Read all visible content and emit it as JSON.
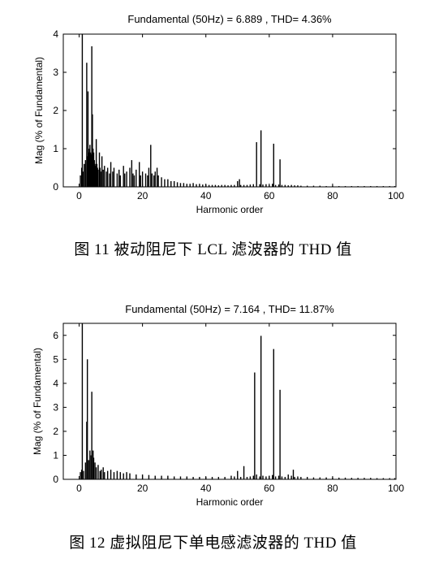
{
  "figures": [
    {
      "caption": "图 11  被动阻尼下 LCL 滤波器的 THD 值"
    },
    {
      "caption": "图 12  虚拟阻尼下单电感滤波器的 THD 值"
    }
  ],
  "chart_data": [
    {
      "type": "bar",
      "title": "Fundamental (50Hz) = 6.889 , THD= 4.36%",
      "xlabel": "Harmonic order",
      "ylabel": "Mag (% of Fundamental)",
      "xlim": [
        -5,
        100
      ],
      "ylim": [
        0,
        4
      ],
      "xticks": [
        0,
        20,
        40,
        60,
        80,
        100
      ],
      "yticks": [
        0,
        1,
        2,
        3,
        4
      ],
      "grid": false,
      "bar_color": "#000000",
      "series": [
        {
          "x": [
            0.4,
            0.8,
            1.0,
            1.2,
            1.6,
            2.0,
            2.4,
            2.6,
            2.8,
            3.0,
            3.2,
            3.4,
            3.6,
            3.8,
            4.0,
            4.2,
            4.4,
            4.6,
            4.8,
            5.0,
            5.2,
            5.4,
            5.6,
            5.8,
            6.0,
            6.4,
            6.6,
            7.0,
            7.2,
            7.6,
            8.0,
            8.6,
            9.0,
            9.6,
            10.0,
            10.6,
            11.0,
            12.0,
            12.6,
            13.0,
            14.0,
            14.4,
            15.0,
            16.0,
            16.6,
            17.0,
            17.4,
            18.0,
            19.0,
            19.4,
            20.0,
            21.0,
            21.6,
            22.0,
            22.6,
            23.0,
            23.6,
            24.0,
            24.6,
            25.0,
            26.0,
            27.0,
            28.0,
            29.0,
            30.0,
            31.0,
            32.0,
            33.0,
            34.0,
            35.0,
            36.0,
            37.0,
            38.0,
            39.0,
            40.0,
            41.0,
            42.0,
            43.0,
            44.0,
            45.0,
            46.0,
            47.0,
            48.0,
            49.0,
            50.0,
            50.6,
            51.0,
            52.0,
            53.0,
            54.0,
            55.0,
            56.0,
            57.0,
            57.4,
            58.0,
            59.0,
            60.0,
            61.0,
            61.4,
            62.0,
            63.0,
            63.4,
            64.0,
            65.0,
            66.0,
            67.0,
            68.0,
            69.0,
            70.0,
            72.0,
            74.0,
            76.0,
            78.0,
            80.0,
            82.0,
            84.0,
            86.0,
            88.0,
            90.0,
            92.0,
            94.0,
            96.0,
            98.0,
            99.6
          ],
          "y": [
            0.3,
            0.5,
            4.0,
            0.4,
            0.6,
            0.7,
            3.25,
            0.8,
            2.5,
            0.9,
            1.0,
            1.1,
            0.9,
            0.85,
            3.68,
            1.9,
            1.0,
            0.9,
            0.7,
            0.6,
            0.55,
            1.25,
            0.6,
            0.5,
            0.45,
            0.9,
            0.5,
            0.4,
            0.8,
            0.45,
            0.55,
            0.4,
            0.5,
            0.35,
            0.65,
            0.4,
            0.5,
            0.35,
            0.45,
            0.3,
            0.55,
            0.35,
            0.4,
            0.5,
            0.7,
            0.35,
            0.3,
            0.45,
            0.65,
            0.3,
            0.4,
            0.35,
            0.3,
            0.5,
            1.1,
            0.35,
            0.3,
            0.4,
            0.5,
            0.3,
            0.25,
            0.2,
            0.2,
            0.15,
            0.15,
            0.12,
            0.1,
            0.1,
            0.08,
            0.08,
            0.1,
            0.07,
            0.08,
            0.06,
            0.06,
            0.05,
            0.05,
            0.05,
            0.04,
            0.05,
            0.05,
            0.04,
            0.05,
            0.05,
            0.15,
            0.2,
            0.05,
            0.05,
            0.05,
            0.06,
            0.07,
            1.17,
            0.07,
            1.48,
            0.06,
            0.07,
            0.05,
            0.08,
            1.13,
            0.05,
            0.06,
            0.72,
            0.05,
            0.05,
            0.04,
            0.05,
            0.04,
            0.04,
            0.03,
            0.03,
            0.03,
            0.03,
            0.02,
            0.03,
            0.02,
            0.02,
            0.02,
            0.02,
            0.02,
            0.02,
            0.02,
            0.02,
            0.02,
            0.02
          ]
        }
      ]
    },
    {
      "type": "bar",
      "title": "Fundamental (50Hz) = 7.164 , THD= 11.87%",
      "xlabel": "Harmonic order",
      "ylabel": "Mag (% of Fundamental)",
      "xlim": [
        -5,
        100
      ],
      "ylim": [
        0,
        6.5
      ],
      "xticks": [
        0,
        20,
        40,
        60,
        80,
        100
      ],
      "yticks": [
        0,
        1,
        2,
        3,
        4,
        5,
        6
      ],
      "grid": false,
      "bar_color": "#000000",
      "series": [
        {
          "x": [
            0.4,
            0.8,
            1.0,
            1.4,
            2.0,
            2.4,
            2.6,
            3.0,
            3.4,
            3.8,
            4.0,
            4.4,
            4.6,
            5.0,
            5.4,
            6.0,
            6.6,
            7.0,
            7.6,
            8.0,
            9.0,
            10.0,
            11.0,
            12.0,
            13.0,
            14.0,
            15.0,
            16.0,
            18.0,
            20.0,
            22.0,
            24.0,
            26.0,
            28.0,
            30.0,
            32.0,
            34.0,
            36.0,
            38.0,
            40.0,
            42.0,
            44.0,
            46.0,
            48.0,
            49.0,
            50.0,
            51.0,
            52.0,
            53.0,
            54.0,
            55.0,
            55.4,
            56.0,
            57.0,
            57.4,
            58.0,
            59.0,
            60.0,
            61.0,
            61.4,
            62.0,
            63.0,
            63.4,
            64.0,
            65.0,
            66.0,
            67.0,
            67.6,
            68.0,
            69.0,
            70.0,
            72.0,
            74.0,
            76.0,
            78.0,
            80.0,
            82.0,
            84.0,
            86.0,
            88.0,
            90.0,
            92.0,
            94.0,
            96.0,
            98.0,
            99.6
          ],
          "y": [
            0.3,
            0.4,
            6.5,
            0.35,
            0.7,
            2.4,
            5.0,
            0.8,
            1.2,
            1.0,
            3.65,
            1.2,
            0.9,
            0.7,
            0.5,
            0.6,
            0.35,
            0.4,
            0.5,
            0.3,
            0.35,
            0.4,
            0.3,
            0.35,
            0.3,
            0.25,
            0.3,
            0.25,
            0.2,
            0.2,
            0.18,
            0.15,
            0.15,
            0.15,
            0.12,
            0.12,
            0.12,
            0.1,
            0.1,
            0.1,
            0.1,
            0.1,
            0.1,
            0.15,
            0.12,
            0.35,
            0.1,
            0.55,
            0.1,
            0.12,
            0.15,
            4.45,
            0.2,
            0.12,
            5.98,
            0.15,
            0.12,
            0.15,
            0.18,
            5.43,
            0.12,
            0.15,
            3.73,
            0.12,
            0.1,
            0.2,
            0.15,
            0.4,
            0.1,
            0.12,
            0.1,
            0.1,
            0.08,
            0.08,
            0.08,
            0.08,
            0.07,
            0.07,
            0.06,
            0.06,
            0.06,
            0.06,
            0.05,
            0.05,
            0.05,
            0.05
          ]
        }
      ]
    }
  ]
}
